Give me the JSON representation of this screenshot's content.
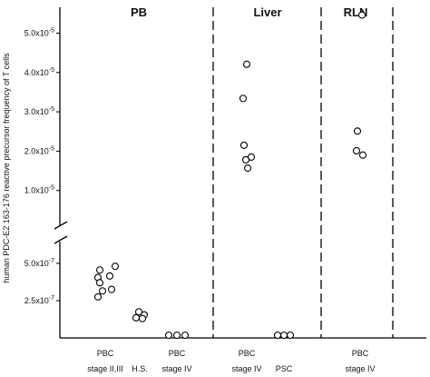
{
  "chart_data": {
    "type": "scatter",
    "ylabel": "human PDC-E2 163-176 reactive precursor frequency of T cells",
    "y_scale": "broken",
    "y_upper": {
      "range": [
        0,
        5.658e-05
      ],
      "ticks": [
        {
          "value": 1e-05,
          "label": "1.0x10-5"
        },
        {
          "value": 2e-05,
          "label": "2.0x10-5"
        },
        {
          "value": 3e-05,
          "label": "3.0x10-5"
        },
        {
          "value": 4e-05,
          "label": "4.0x10-5"
        },
        {
          "value": 5e-05,
          "label": "5.0x10-5"
        }
      ]
    },
    "y_lower": {
      "range": [
        0,
        7e-07
      ],
      "ticks": [
        {
          "value": 2.5e-07,
          "label": "2.5x10-7"
        },
        {
          "value": 5e-07,
          "label": "5.0x10-7"
        }
      ]
    },
    "panels": [
      {
        "title": "PB",
        "categories": [
          "PBC stage II,III",
          "H.S.",
          "PBC stage IV"
        ]
      },
      {
        "title": "Liver",
        "categories": [
          "PBC stage IV",
          "PSC"
        ]
      },
      {
        "title": "RLN",
        "categories": [
          "PBC stage IV"
        ]
      }
    ],
    "category_labels": [
      {
        "line1": "PBC",
        "line2": "stage II,III"
      },
      {
        "line1": "",
        "line2": "H.S."
      },
      {
        "line1": "PBC",
        "line2": "stage IV"
      },
      {
        "line1": "PBC",
        "line2": "stage IV"
      },
      {
        "line1": "",
        "line2": "PSC"
      },
      {
        "line1": "PBC",
        "line2": "stage IV"
      }
    ],
    "series": [
      {
        "category": "PBC stage II,III",
        "panel": "PB",
        "values": [
          4.8e-07,
          4.55e-07,
          4.15e-07,
          4.05e-07,
          3.7e-07,
          3.25e-07,
          3.15e-07,
          2.75e-07
        ]
      },
      {
        "category": "H.S.",
        "panel": "PB",
        "values": [
          1.75e-07,
          1.55e-07,
          1.35e-07,
          1.3e-07
        ]
      },
      {
        "category": "PBC stage IV",
        "panel": "PB",
        "values": [
          0,
          0,
          0
        ]
      },
      {
        "category": "PBC stage IV",
        "panel": "Liver",
        "values": [
          4.21e-05,
          3.34e-05,
          2.15e-05,
          1.85e-05,
          1.78e-05,
          1.57e-05
        ]
      },
      {
        "category": "PSC",
        "panel": "Liver",
        "values": [
          0,
          0,
          0
        ]
      },
      {
        "category": "PBC stage IV",
        "panel": "RLN",
        "values": [
          5.46e-05,
          2.51e-05,
          2.01e-05,
          1.9e-05
        ]
      }
    ]
  }
}
